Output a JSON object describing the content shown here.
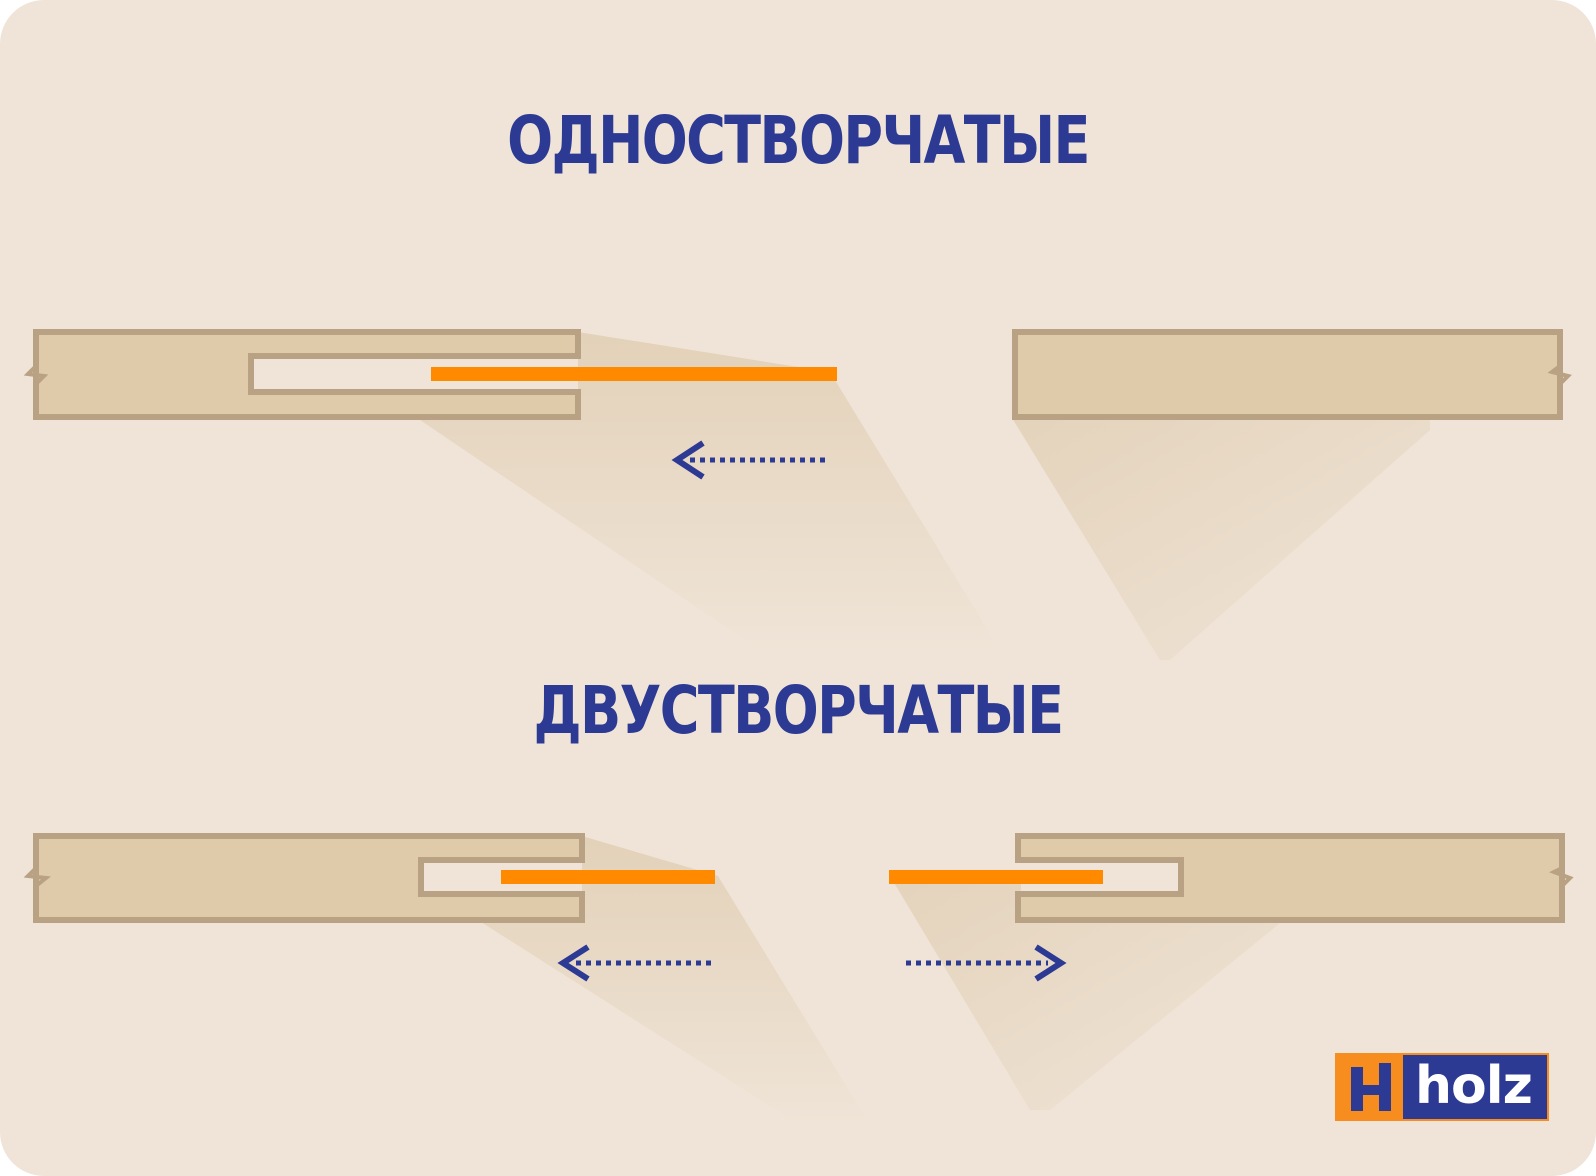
{
  "headings": {
    "single": "ОДНОСТВОРЧАТЫЕ",
    "double": "ДВУСТВОРЧАТЫЕ"
  },
  "logo": {
    "text": "holz",
    "icon": "h-logo-icon"
  },
  "colors": {
    "background": "#efe4d7",
    "heading": "#2d3a94",
    "wall_fill": "#dfcaa9",
    "wall_stroke": "#b9a284",
    "door_leaf": "#ff8a00",
    "arrow": "#2d3a94",
    "logo_bg": "#2d3a94",
    "logo_accent": "#f68d1e"
  },
  "icons": {
    "arrow_left": "arrow-left-icon",
    "arrow_right": "arrow-right-icon",
    "wall_break": "wall-break-icon"
  }
}
